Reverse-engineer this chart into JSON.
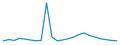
{
  "values": [
    3,
    6,
    4,
    9,
    7,
    5,
    3,
    4,
    95,
    12,
    3,
    5,
    8,
    12,
    18,
    22,
    16,
    12,
    8,
    6,
    4,
    3
  ],
  "line_color": "#2090c0",
  "background_color": "#ffffff",
  "linewidth": 0.9,
  "ylim_min": -5,
  "ylim_max": 100
}
